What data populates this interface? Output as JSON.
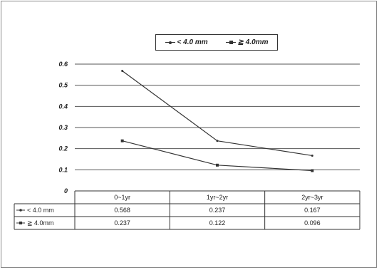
{
  "chart_data": {
    "type": "line",
    "categories": [
      "0~1yr",
      "1yr~2yr",
      "2yr~3yr"
    ],
    "series": [
      {
        "name": "< 4.0 mm",
        "values": [
          0.568,
          0.237,
          0.167
        ]
      },
      {
        "name": "≧ 4.0mm",
        "values": [
          0.237,
          0.122,
          0.096
        ]
      }
    ],
    "legend_labels": [
      "< 4.0 mm",
      "≧ 4.0mm"
    ],
    "table_row_labels": [
      "< 4.0 mm",
      "≧ 4.0mm"
    ],
    "table_values": [
      [
        "0.568",
        "0.237",
        "0.167"
      ],
      [
        "0.237",
        "0.122",
        "0.096"
      ]
    ],
    "y_ticks": [
      "0",
      "0.1",
      "0.2",
      "0.3",
      "0.4",
      "0.5",
      "0.6"
    ],
    "ylim": [
      0,
      0.6
    ],
    "grid": true,
    "legend_position": "top",
    "data_table": true,
    "colors": {
      "line": "#333333",
      "grid": "#555555",
      "text": "#222222"
    }
  }
}
